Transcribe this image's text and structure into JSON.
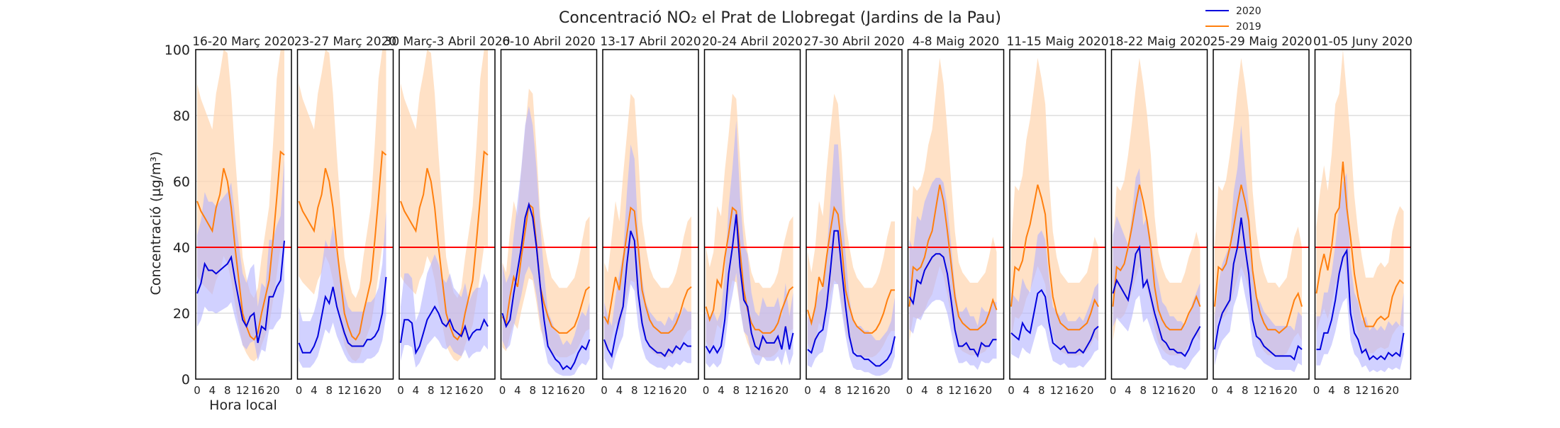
{
  "chart_data": {
    "type": "line",
    "title": "Concentració NO₂ el Prat de Llobregat (Jardins de la Pau)",
    "ylabel": "Concentració (µg/m³)",
    "xlabel": "Hora local",
    "ylim": [
      0,
      100
    ],
    "yticks": [
      0,
      20,
      40,
      60,
      80,
      100
    ],
    "xlim": [
      0,
      23
    ],
    "xticks": [
      0,
      4,
      8,
      12,
      16,
      20
    ],
    "grid": "horizontal",
    "legend": {
      "placement": "top-right",
      "entries": [
        "2020",
        "2019"
      ]
    },
    "limit_line": {
      "value": 40,
      "color": "#ff0000"
    },
    "colors": {
      "2020": "#0000dd",
      "2019": "#ff7f0e",
      "band_2020": "#b3b3ff",
      "band_2019": "#ffd7b3"
    },
    "x_hours": [
      0,
      1,
      2,
      3,
      4,
      5,
      6,
      7,
      8,
      9,
      10,
      11,
      12,
      13,
      14,
      15,
      16,
      17,
      18,
      19,
      20,
      21,
      22,
      23
    ],
    "panels": [
      {
        "title": "16-20 Març 2020",
        "series": [
          {
            "name": "2020",
            "values": [
              26,
              29,
              35,
              33,
              33,
              32,
              33,
              34,
              35,
              37,
              30,
              24,
              18,
              16,
              19,
              20,
              11,
              16,
              15,
              25,
              25,
              28,
              30,
              42
            ]
          },
          {
            "name": "2019",
            "values": [
              54,
              51,
              49,
              47,
              45,
              52,
              56,
              64,
              60,
              52,
              40,
              30,
              20,
              16,
              13,
              12,
              14,
              20,
              25,
              30,
              42,
              55,
              69,
              68
            ]
          }
        ]
      },
      {
        "title": "23-27 Març 2020",
        "series": [
          {
            "name": "2020",
            "values": [
              11,
              8,
              8,
              8,
              10,
              13,
              19,
              25,
              23,
              28,
              22,
              18,
              14,
              11,
              10,
              10,
              10,
              10,
              12,
              12,
              13,
              15,
              20,
              31
            ]
          },
          {
            "name": "2019",
            "values": [
              54,
              51,
              49,
              47,
              45,
              52,
              56,
              64,
              60,
              52,
              40,
              30,
              20,
              16,
              13,
              12,
              14,
              20,
              25,
              30,
              42,
              55,
              69,
              68
            ]
          }
        ]
      },
      {
        "title": "30 Març-3 Abril 2020",
        "series": [
          {
            "name": "2020",
            "values": [
              11,
              18,
              18,
              17,
              8,
              10,
              14,
              18,
              20,
              22,
              20,
              17,
              16,
              18,
              15,
              14,
              13,
              16,
              12,
              14,
              15,
              15,
              18,
              16
            ]
          },
          {
            "name": "2019",
            "values": [
              54,
              51,
              49,
              47,
              45,
              52,
              56,
              64,
              60,
              52,
              40,
              30,
              20,
              16,
              13,
              12,
              14,
              20,
              25,
              30,
              42,
              55,
              69,
              68
            ]
          }
        ]
      },
      {
        "title": "6-10 Abril 2020",
        "series": [
          {
            "name": "2020",
            "values": [
              20,
              16,
              18,
              26,
              33,
              40,
              49,
              53,
              49,
              40,
              28,
              18,
              10,
              8,
              6,
              5,
              3,
              4,
              3,
              5,
              8,
              10,
              9,
              12
            ]
          },
          {
            "name": "2019",
            "values": [
              19,
              17,
              25,
              31,
              28,
              37,
              45,
              53,
              52,
              41,
              28,
              23,
              19,
              16,
              15,
              14,
              14,
              14,
              15,
              16,
              19,
              23,
              27,
              28
            ]
          }
        ]
      },
      {
        "title": "13-17 Abril 2020",
        "series": [
          {
            "name": "2020",
            "values": [
              12,
              9,
              7,
              13,
              18,
              22,
              35,
              45,
              42,
              26,
              17,
              12,
              10,
              9,
              8,
              8,
              7,
              9,
              8,
              10,
              9,
              11,
              10,
              10
            ]
          },
          {
            "name": "2019",
            "values": [
              19,
              17,
              24,
              31,
              27,
              36,
              44,
              52,
              51,
              40,
              27,
              22,
              18,
              16,
              15,
              14,
              14,
              14,
              15,
              17,
              20,
              24,
              27,
              28
            ]
          }
        ]
      },
      {
        "title": "20-24 Abril 2020",
        "series": [
          {
            "name": "2020",
            "values": [
              10,
              8,
              10,
              8,
              10,
              18,
              32,
              40,
              50,
              34,
              24,
              22,
              14,
              10,
              9,
              13,
              11,
              11,
              11,
              13,
              9,
              16,
              9,
              14
            ]
          },
          {
            "name": "2019",
            "values": [
              22,
              18,
              21,
              30,
              28,
              37,
              44,
              52,
              51,
              39,
              27,
              21,
              17,
              15,
              15,
              14,
              14,
              14,
              15,
              17,
              21,
              24,
              27,
              28
            ]
          }
        ]
      },
      {
        "title": "27-30 Abril 2020",
        "series": [
          {
            "name": "2020",
            "values": [
              9,
              8,
              12,
              14,
              15,
              22,
              33,
              45,
              45,
              33,
              22,
              13,
              8,
              7,
              7,
              6,
              6,
              5,
              4,
              4,
              5,
              6,
              8,
              13
            ]
          },
          {
            "name": "2019",
            "values": [
              21,
              17,
              22,
              31,
              28,
              37,
              45,
              52,
              50,
              40,
              27,
              22,
              18,
              16,
              15,
              14,
              14,
              14,
              15,
              17,
              20,
              24,
              27,
              27
            ]
          }
        ]
      },
      {
        "title": "4-8 Maig 2020",
        "series": [
          {
            "name": "2020",
            "values": [
              25,
              23,
              30,
              29,
              33,
              35,
              37,
              38,
              38,
              37,
              32,
              24,
              15,
              10,
              10,
              11,
              9,
              9,
              7,
              11,
              10,
              10,
              12,
              12
            ]
          },
          {
            "name": "2019",
            "values": [
              22,
              34,
              33,
              34,
              37,
              42,
              45,
              52,
              59,
              54,
              45,
              35,
              25,
              19,
              17,
              16,
              15,
              15,
              15,
              16,
              17,
              20,
              24,
              21
            ]
          }
        ]
      },
      {
        "title": "11-15 Maig 2020",
        "series": [
          {
            "name": "2020",
            "values": [
              14,
              13,
              12,
              17,
              15,
              14,
              20,
              26,
              27,
              25,
              17,
              11,
              10,
              9,
              10,
              8,
              8,
              8,
              9,
              8,
              10,
              12,
              15,
              16
            ]
          },
          {
            "name": "2019",
            "values": [
              22,
              34,
              33,
              36,
              43,
              47,
              53,
              59,
              55,
              50,
              35,
              25,
              20,
              17,
              16,
              15,
              15,
              15,
              15,
              16,
              17,
              20,
              24,
              22
            ]
          }
        ]
      },
      {
        "title": "18-22 Maig 2020",
        "series": [
          {
            "name": "2020",
            "values": [
              26,
              30,
              28,
              26,
              24,
              30,
              38,
              40,
              28,
              30,
              25,
              20,
              16,
              12,
              11,
              9,
              9,
              8,
              8,
              7,
              9,
              12,
              14,
              16
            ]
          },
          {
            "name": "2019",
            "values": [
              22,
              34,
              33,
              35,
              40,
              46,
              53,
              59,
              54,
              48,
              40,
              28,
              21,
              18,
              16,
              15,
              15,
              15,
              15,
              17,
              20,
              22,
              25,
              22
            ]
          }
        ]
      },
      {
        "title": "25-29 Maig 2020",
        "series": [
          {
            "name": "2020",
            "values": [
              9,
              16,
              20,
              22,
              24,
              35,
              40,
              49,
              40,
              32,
              18,
              13,
              12,
              10,
              9,
              8,
              7,
              7,
              7,
              7,
              7,
              6,
              10,
              9
            ]
          },
          {
            "name": "2019",
            "values": [
              22,
              34,
              33,
              35,
              40,
              46,
              53,
              59,
              54,
              48,
              33,
              25,
              20,
              17,
              15,
              15,
              15,
              14,
              15,
              16,
              20,
              24,
              26,
              22
            ]
          }
        ]
      },
      {
        "title": "01-05 Juny 2020",
        "series": [
          {
            "name": "2020",
            "values": [
              9,
              9,
              14,
              14,
              18,
              24,
              32,
              37,
              39,
              20,
              14,
              12,
              8,
              9,
              6,
              7,
              6,
              7,
              6,
              8,
              7,
              8,
              7,
              14
            ]
          },
          {
            "name": "2019",
            "values": [
              26,
              33,
              38,
              33,
              40,
              50,
              52,
              66,
              52,
              43,
              32,
              25,
              20,
              16,
              16,
              16,
              18,
              19,
              18,
              19,
              25,
              28,
              30,
              29
            ]
          }
        ]
      }
    ]
  }
}
